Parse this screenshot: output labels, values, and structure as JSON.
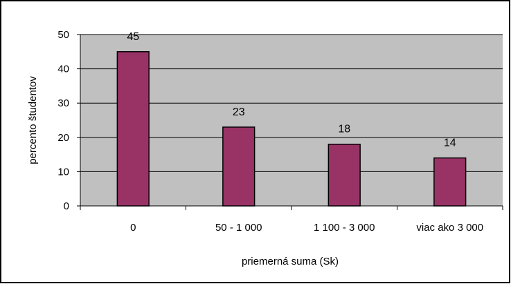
{
  "chart_data": {
    "type": "bar",
    "title": "",
    "xlabel": "priemerná suma (Sk)",
    "ylabel": "percento študentov",
    "categories": [
      "0",
      "50 - 1 000",
      "1 100 - 3 000",
      "viac ako 3 000"
    ],
    "values": [
      45,
      23,
      18,
      14
    ],
    "data_labels": [
      "45",
      "23",
      "18",
      "14"
    ],
    "ylim": [
      0,
      50
    ],
    "yticks": [
      "0",
      "10",
      "20",
      "30",
      "40",
      "50"
    ],
    "grid": true,
    "legend": "none",
    "colors": {
      "bar_fill": "#993366",
      "bar_stroke": "#000000",
      "plot_background": "#c0c0c0",
      "gridline": "#000000"
    }
  }
}
